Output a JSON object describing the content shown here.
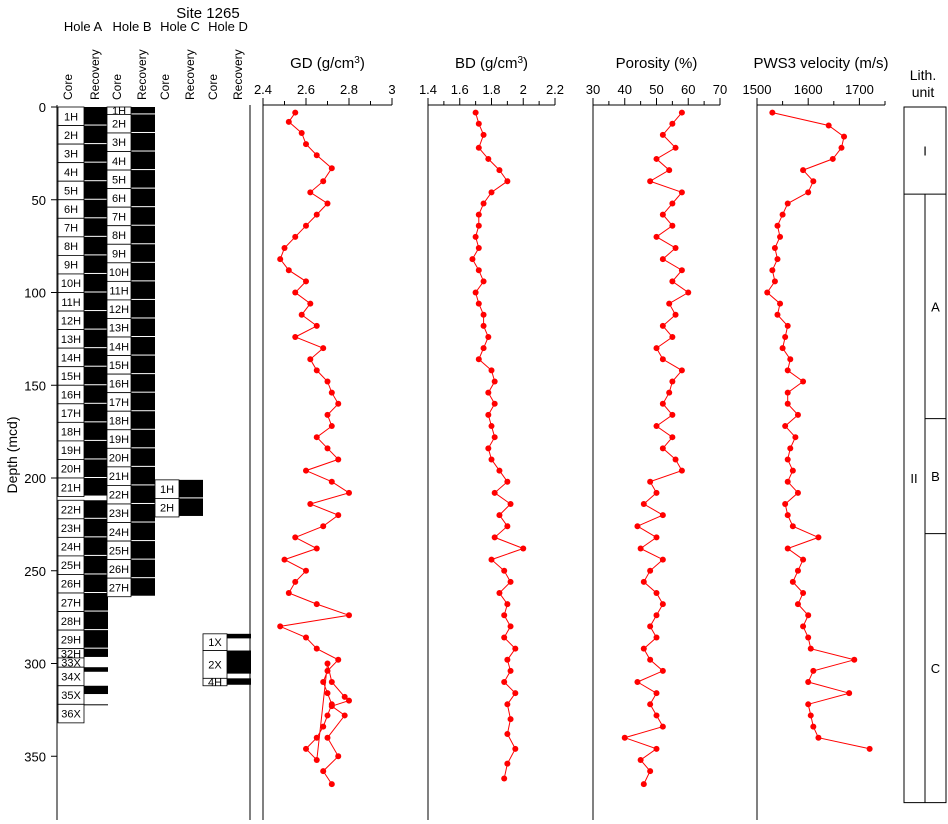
{
  "figure": {
    "site_title": "Site 1265",
    "depth_axis": {
      "label": "Depth (mcd)",
      "ticks": [
        0,
        50,
        100,
        150,
        200,
        250,
        300,
        350
      ],
      "range": [
        0,
        375
      ]
    },
    "colors": {
      "data": "#ff0000",
      "core_fill": "#000000"
    }
  },
  "holes": [
    {
      "name": "Hole A",
      "core_label": "Core",
      "recovery_label": "Recovery",
      "cores": [
        {
          "id": "1H",
          "top": 0,
          "bottom": 10,
          "rec": 10
        },
        {
          "id": "2H",
          "top": 10,
          "bottom": 20,
          "rec": 10
        },
        {
          "id": "3H",
          "top": 20,
          "bottom": 30,
          "rec": 10
        },
        {
          "id": "4H",
          "top": 30,
          "bottom": 40,
          "rec": 10
        },
        {
          "id": "5H",
          "top": 40,
          "bottom": 50,
          "rec": 10
        },
        {
          "id": "6H",
          "top": 50,
          "bottom": 60,
          "rec": 10
        },
        {
          "id": "7H",
          "top": 60,
          "bottom": 70,
          "rec": 10
        },
        {
          "id": "8H",
          "top": 70,
          "bottom": 80,
          "rec": 10
        },
        {
          "id": "9H",
          "top": 80,
          "bottom": 90,
          "rec": 10
        },
        {
          "id": "10H",
          "top": 90,
          "bottom": 100,
          "rec": 10
        },
        {
          "id": "11H",
          "top": 100,
          "bottom": 110,
          "rec": 10
        },
        {
          "id": "12H",
          "top": 110,
          "bottom": 120,
          "rec": 10
        },
        {
          "id": "13H",
          "top": 120,
          "bottom": 130,
          "rec": 10
        },
        {
          "id": "14H",
          "top": 130,
          "bottom": 140,
          "rec": 10
        },
        {
          "id": "15H",
          "top": 140,
          "bottom": 150,
          "rec": 10
        },
        {
          "id": "16H",
          "top": 150,
          "bottom": 160,
          "rec": 10
        },
        {
          "id": "17H",
          "top": 160,
          "bottom": 170,
          "rec": 10
        },
        {
          "id": "18H",
          "top": 170,
          "bottom": 180,
          "rec": 10
        },
        {
          "id": "19H",
          "top": 180,
          "bottom": 190,
          "rec": 10
        },
        {
          "id": "20H",
          "top": 190,
          "bottom": 200,
          "rec": 10
        },
        {
          "id": "21H",
          "top": 200,
          "bottom": 210,
          "rec": 10
        },
        {
          "id": "22H",
          "top": 212,
          "bottom": 222,
          "rec": 10
        },
        {
          "id": "23H",
          "top": 222,
          "bottom": 232,
          "rec": 10
        },
        {
          "id": "24H",
          "top": 232,
          "bottom": 242,
          "rec": 10
        },
        {
          "id": "25H",
          "top": 242,
          "bottom": 252,
          "rec": 10
        },
        {
          "id": "26H",
          "top": 252,
          "bottom": 262,
          "rec": 10
        },
        {
          "id": "27H",
          "top": 262,
          "bottom": 272,
          "rec": 10
        },
        {
          "id": "28H",
          "top": 272,
          "bottom": 282,
          "rec": 10
        },
        {
          "id": "29H",
          "top": 282,
          "bottom": 292,
          "rec": 10
        },
        {
          "id": "32H",
          "top": 292,
          "bottom": 297,
          "rec": 5
        },
        {
          "id": "33X",
          "top": 297,
          "bottom": 302,
          "rec": 0
        },
        {
          "id": "34X",
          "top": 302,
          "bottom": 312,
          "rec": 3
        },
        {
          "id": "35X",
          "top": 312,
          "bottom": 322,
          "rec": 5
        },
        {
          "id": "36X",
          "top": 322,
          "bottom": 332,
          "rec": 1
        }
      ]
    },
    {
      "name": "Hole B",
      "core_label": "Core",
      "recovery_label": "Recovery",
      "cores": [
        {
          "id": "1H",
          "top": 0,
          "bottom": 4,
          "rec": 4
        },
        {
          "id": "2H",
          "top": 4,
          "bottom": 14,
          "rec": 10
        },
        {
          "id": "3H",
          "top": 14,
          "bottom": 24,
          "rec": 10
        },
        {
          "id": "4H",
          "top": 24,
          "bottom": 34,
          "rec": 10
        },
        {
          "id": "5H",
          "top": 34,
          "bottom": 44,
          "rec": 10
        },
        {
          "id": "6H",
          "top": 44,
          "bottom": 54,
          "rec": 10
        },
        {
          "id": "7H",
          "top": 54,
          "bottom": 64,
          "rec": 10
        },
        {
          "id": "8H",
          "top": 64,
          "bottom": 74,
          "rec": 10
        },
        {
          "id": "9H",
          "top": 74,
          "bottom": 84,
          "rec": 10
        },
        {
          "id": "10H",
          "top": 84,
          "bottom": 94,
          "rec": 10
        },
        {
          "id": "11H",
          "top": 94,
          "bottom": 104,
          "rec": 10
        },
        {
          "id": "12H",
          "top": 104,
          "bottom": 114,
          "rec": 10
        },
        {
          "id": "13H",
          "top": 114,
          "bottom": 124,
          "rec": 10
        },
        {
          "id": "14H",
          "top": 124,
          "bottom": 134,
          "rec": 10
        },
        {
          "id": "15H",
          "top": 134,
          "bottom": 144,
          "rec": 10
        },
        {
          "id": "16H",
          "top": 144,
          "bottom": 154,
          "rec": 10
        },
        {
          "id": "17H",
          "top": 154,
          "bottom": 164,
          "rec": 10
        },
        {
          "id": "18H",
          "top": 164,
          "bottom": 174,
          "rec": 10
        },
        {
          "id": "19H",
          "top": 174,
          "bottom": 184,
          "rec": 10
        },
        {
          "id": "20H",
          "top": 184,
          "bottom": 194,
          "rec": 10
        },
        {
          "id": "21H",
          "top": 194,
          "bottom": 204,
          "rec": 10
        },
        {
          "id": "22H",
          "top": 204,
          "bottom": 214,
          "rec": 10
        },
        {
          "id": "23H",
          "top": 214,
          "bottom": 224,
          "rec": 10
        },
        {
          "id": "24H",
          "top": 224,
          "bottom": 234,
          "rec": 10
        },
        {
          "id": "25H",
          "top": 234,
          "bottom": 244,
          "rec": 10
        },
        {
          "id": "26H",
          "top": 244,
          "bottom": 254,
          "rec": 10
        },
        {
          "id": "27H",
          "top": 254,
          "bottom": 264,
          "rec": 10
        }
      ]
    },
    {
      "name": "Hole C",
      "core_label": "Core",
      "recovery_label": "Recovery",
      "cores": [
        {
          "id": "1H",
          "top": 201,
          "bottom": 211,
          "rec": 10
        },
        {
          "id": "2H",
          "top": 211,
          "bottom": 221,
          "rec": 10
        }
      ]
    },
    {
      "name": "Hole D",
      "core_label": "Core",
      "recovery_label": "Recovery",
      "cores": [
        {
          "id": "1X",
          "top": 284,
          "bottom": 293,
          "rec": 3
        },
        {
          "id": "2X",
          "top": 293,
          "bottom": 308,
          "rec": 13
        },
        {
          "id": "4H",
          "top": 308,
          "bottom": 312,
          "rec": 4
        }
      ]
    }
  ],
  "chart_data": [
    {
      "type": "line",
      "title": "",
      "xlabel_parts": [
        "GD (g/cm",
        "3",
        ")"
      ],
      "xlim": [
        2.4,
        3.0
      ],
      "xticks": [
        "2.4",
        "2.6",
        "2.8",
        "3"
      ],
      "ylim": [
        0,
        375
      ],
      "series": [
        {
          "x": [
            2.55,
            2.52,
            2.58,
            2.6,
            2.65,
            2.72,
            2.68,
            2.62,
            2.7,
            2.65,
            2.6,
            2.55,
            2.5,
            2.48,
            2.52,
            2.6,
            2.55,
            2.62,
            2.58,
            2.65,
            2.55,
            2.68,
            2.62,
            2.65,
            2.7,
            2.72,
            2.75,
            2.7,
            2.72,
            2.65,
            2.7,
            2.75,
            2.6,
            2.72,
            2.8,
            2.62,
            2.75,
            2.68,
            2.55,
            2.65,
            2.5,
            2.6,
            2.55,
            2.52,
            2.65,
            2.8,
            2.48,
            2.6,
            2.65,
            2.75,
            2.7,
            2.68,
            2.7,
            2.72,
            2.7,
            2.68,
            2.65,
            2.6,
            2.65,
            2.7,
            2.72,
            2.78,
            2.8,
            2.72,
            2.78,
            2.7,
            2.75,
            2.68,
            2.72
          ],
          "y": [
            3,
            8,
            14,
            20,
            26,
            33,
            40,
            46,
            52,
            58,
            64,
            70,
            76,
            82,
            88,
            94,
            100,
            106,
            112,
            118,
            124,
            130,
            136,
            142,
            148,
            154,
            160,
            166,
            172,
            178,
            184,
            190,
            196,
            202,
            208,
            214,
            220,
            226,
            232,
            238,
            244,
            250,
            256,
            262,
            268,
            274,
            280,
            286,
            292,
            298,
            304,
            310,
            316,
            322,
            328,
            334,
            340,
            346,
            352,
            300,
            310,
            318,
            320,
            323,
            328,
            340,
            350,
            358,
            365
          ]
        }
      ]
    },
    {
      "type": "line",
      "title": "",
      "xlabel_parts": [
        "BD (g/cm",
        "3",
        ")"
      ],
      "xlim": [
        1.4,
        2.2
      ],
      "xticks": [
        "1.4",
        "1.6",
        "1.8",
        "2",
        "2.2"
      ],
      "ylim": [
        0,
        375
      ],
      "series": [
        {
          "x": [
            1.7,
            1.72,
            1.75,
            1.72,
            1.78,
            1.85,
            1.9,
            1.8,
            1.75,
            1.72,
            1.72,
            1.7,
            1.72,
            1.68,
            1.72,
            1.75,
            1.7,
            1.72,
            1.75,
            1.75,
            1.78,
            1.75,
            1.72,
            1.8,
            1.82,
            1.78,
            1.82,
            1.78,
            1.8,
            1.82,
            1.78,
            1.8,
            1.85,
            1.9,
            1.82,
            1.92,
            1.85,
            1.9,
            1.82,
            2.0,
            1.8,
            1.88,
            1.92,
            1.85,
            1.9,
            1.88,
            1.92,
            1.88,
            1.95,
            1.9,
            1.92,
            1.88,
            1.95,
            1.9,
            1.92,
            1.9,
            1.95,
            1.9,
            1.88
          ],
          "y": [
            3,
            9,
            15,
            22,
            28,
            34,
            40,
            46,
            52,
            58,
            64,
            70,
            76,
            82,
            88,
            94,
            100,
            106,
            112,
            118,
            124,
            130,
            136,
            142,
            148,
            154,
            160,
            166,
            172,
            178,
            184,
            190,
            196,
            202,
            208,
            214,
            220,
            226,
            232,
            238,
            244,
            250,
            256,
            262,
            268,
            274,
            280,
            286,
            292,
            298,
            304,
            310,
            316,
            322,
            330,
            338,
            346,
            354,
            362
          ]
        }
      ]
    },
    {
      "type": "line",
      "title": "",
      "xlabel_parts": [
        "Porosity (%)"
      ],
      "xlim": [
        30,
        70
      ],
      "xticks": [
        "30",
        "40",
        "50",
        "60",
        "70"
      ],
      "ylim": [
        0,
        375
      ],
      "series": [
        {
          "x": [
            58,
            55,
            52,
            56,
            50,
            54,
            48,
            58,
            55,
            52,
            55,
            50,
            56,
            52,
            58,
            55,
            60,
            54,
            56,
            52,
            55,
            50,
            52,
            58,
            55,
            54,
            52,
            55,
            50,
            55,
            52,
            56,
            58,
            48,
            50,
            46,
            52,
            44,
            50,
            45,
            52,
            48,
            46,
            50,
            52,
            50,
            48,
            50,
            46,
            48,
            52,
            44,
            50,
            48,
            50,
            52,
            40,
            50,
            45,
            48,
            46
          ],
          "y": [
            3,
            9,
            15,
            22,
            28,
            34,
            40,
            46,
            52,
            58,
            64,
            70,
            76,
            82,
            88,
            94,
            100,
            106,
            112,
            118,
            124,
            130,
            136,
            142,
            148,
            154,
            160,
            166,
            172,
            178,
            184,
            190,
            196,
            202,
            208,
            214,
            220,
            226,
            232,
            238,
            244,
            250,
            256,
            262,
            268,
            274,
            280,
            286,
            292,
            298,
            304,
            310,
            316,
            322,
            328,
            334,
            340,
            346,
            352,
            358,
            365
          ]
        }
      ]
    },
    {
      "type": "line",
      "title": "",
      "xlabel_parts": [
        "PWS3 velocity (m/s)"
      ],
      "xlim": [
        1500,
        1750
      ],
      "xticks": [
        "1500",
        "1600",
        "1700"
      ],
      "ylim": [
        0,
        375
      ],
      "series": [
        {
          "x": [
            1530,
            1640,
            1670,
            1665,
            1648,
            1590,
            1610,
            1600,
            1560,
            1550,
            1540,
            1545,
            1535,
            1540,
            1530,
            1535,
            1520,
            1545,
            1540,
            1560,
            1555,
            1550,
            1565,
            1560,
            1590,
            1560,
            1560,
            1580,
            1555,
            1575,
            1565,
            1560,
            1570,
            1560,
            1580,
            1555,
            1560,
            1570,
            1620,
            1560,
            1590,
            1580,
            1570,
            1590,
            1580,
            1600,
            1590,
            1600,
            1605,
            1690,
            1610,
            1600,
            1680,
            1600,
            1605,
            1610,
            1620,
            1720
          ],
          "y": [
            3,
            10,
            16,
            22,
            28,
            34,
            40,
            46,
            52,
            58,
            64,
            70,
            76,
            82,
            88,
            94,
            100,
            106,
            112,
            118,
            124,
            130,
            136,
            142,
            148,
            154,
            160,
            166,
            172,
            178,
            184,
            190,
            196,
            202,
            208,
            214,
            220,
            226,
            232,
            238,
            244,
            250,
            256,
            262,
            268,
            274,
            280,
            286,
            292,
            298,
            304,
            310,
            316,
            322,
            328,
            334,
            340,
            346
          ]
        }
      ]
    }
  ],
  "lith": {
    "title_line1": "Lith.",
    "title_line2": "unit",
    "units": [
      {
        "label": "I",
        "top": 0,
        "bottom": 47
      }
    ],
    "unit2": {
      "label": "II",
      "top": 47,
      "bottom": 375
    },
    "subunits": [
      {
        "label": "A",
        "top": 47,
        "bottom": 168
      },
      {
        "label": "B",
        "top": 168,
        "bottom": 230
      },
      {
        "label": "C",
        "top": 230,
        "bottom": 375
      }
    ]
  }
}
